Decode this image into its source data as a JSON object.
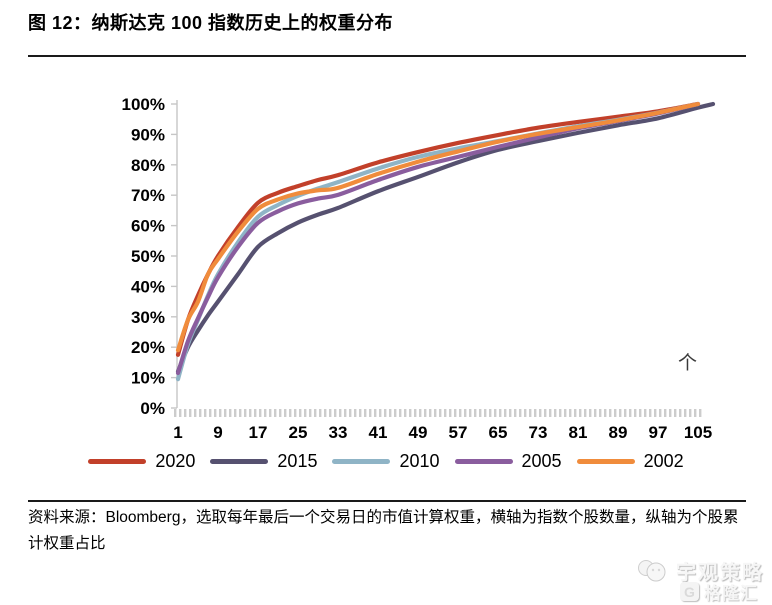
{
  "page": {
    "title": "图 12：纳斯达克 100 指数历史上的权重分布",
    "source_note": "资料来源：Bloomberg，选取每年最后一个交易日的市值计算权重，横轴为指数个股数量，纵轴为个股累计权重占比",
    "chart_annotation": "个",
    "watermark": {
      "brand": "宇观策略",
      "logo_letter": "G",
      "logo_text": "格隆汇"
    }
  },
  "chart_data": {
    "type": "line",
    "title": "",
    "xlabel": "",
    "ylabel": "",
    "ylim": [
      0,
      100
    ],
    "grid": false,
    "legend_position": "bottom",
    "y_ticks": [
      "100%",
      "90%",
      "80%",
      "70%",
      "60%",
      "50%",
      "40%",
      "30%",
      "20%",
      "10%",
      "0%"
    ],
    "x_ticks": [
      1,
      9,
      17,
      25,
      33,
      41,
      49,
      57,
      65,
      73,
      81,
      89,
      97,
      105
    ],
    "x_max": 105,
    "series": [
      {
        "name": "2020",
        "color": "#c2402a",
        "x": [
          1,
          3,
          5,
          7,
          9,
          13,
          17,
          21,
          25,
          29,
          33,
          41,
          49,
          57,
          65,
          73,
          81,
          89,
          97,
          105
        ],
        "y": [
          17.5,
          29,
          37,
          44,
          50,
          59.5,
          67.5,
          70.8,
          73,
          75,
          76.6,
          80.8,
          84.2,
          87.2,
          89.8,
          92.2,
          94.1,
          95.8,
          97.6,
          100
        ]
      },
      {
        "name": "2015",
        "color": "#565170",
        "x": [
          1,
          3,
          5,
          7,
          9,
          13,
          17,
          21,
          25,
          29,
          33,
          41,
          49,
          57,
          65,
          73,
          81,
          89,
          97,
          105,
          108
        ],
        "y": [
          12,
          20,
          25.5,
          30.5,
          35,
          44,
          53,
          57.5,
          61,
          63.6,
          65.8,
          71.3,
          76,
          80.8,
          84.9,
          87.8,
          90.5,
          93,
          95.3,
          98.8,
          100
        ]
      },
      {
        "name": "2010",
        "color": "#8fb4c6",
        "x": [
          1,
          3,
          5,
          7,
          9,
          13,
          17,
          21,
          25,
          29,
          33,
          41,
          49,
          57,
          65,
          73,
          81,
          89,
          97,
          105
        ],
        "y": [
          9.5,
          21,
          29,
          37,
          44,
          54.5,
          62.9,
          66.8,
          69.8,
          72.2,
          74.3,
          78.8,
          82.6,
          85.4,
          87.8,
          90.3,
          92.7,
          94.8,
          97.2,
          100
        ]
      },
      {
        "name": "2005",
        "color": "#8a5d9e",
        "x": [
          1,
          3,
          5,
          7,
          9,
          13,
          17,
          21,
          25,
          29,
          33,
          41,
          49,
          57,
          65,
          73,
          81,
          89,
          97,
          105
        ],
        "y": [
          11.5,
          22,
          29.5,
          36.5,
          43,
          53,
          60.9,
          64.7,
          67.3,
          68.9,
          70.1,
          75,
          79.3,
          82.6,
          85.9,
          89,
          92,
          94.4,
          96.9,
          100
        ]
      },
      {
        "name": "2002",
        "color": "#f08c3c",
        "x": [
          1,
          3,
          5,
          7,
          9,
          13,
          17,
          21,
          25,
          29,
          33,
          41,
          49,
          57,
          65,
          73,
          81,
          89,
          97,
          105
        ],
        "y": [
          19,
          29,
          35,
          44,
          49,
          58,
          65.5,
          68.6,
          70.6,
          71.6,
          72.4,
          77,
          81,
          84.4,
          87.6,
          90.2,
          92.4,
          94.6,
          97.1,
          100
        ]
      }
    ]
  }
}
